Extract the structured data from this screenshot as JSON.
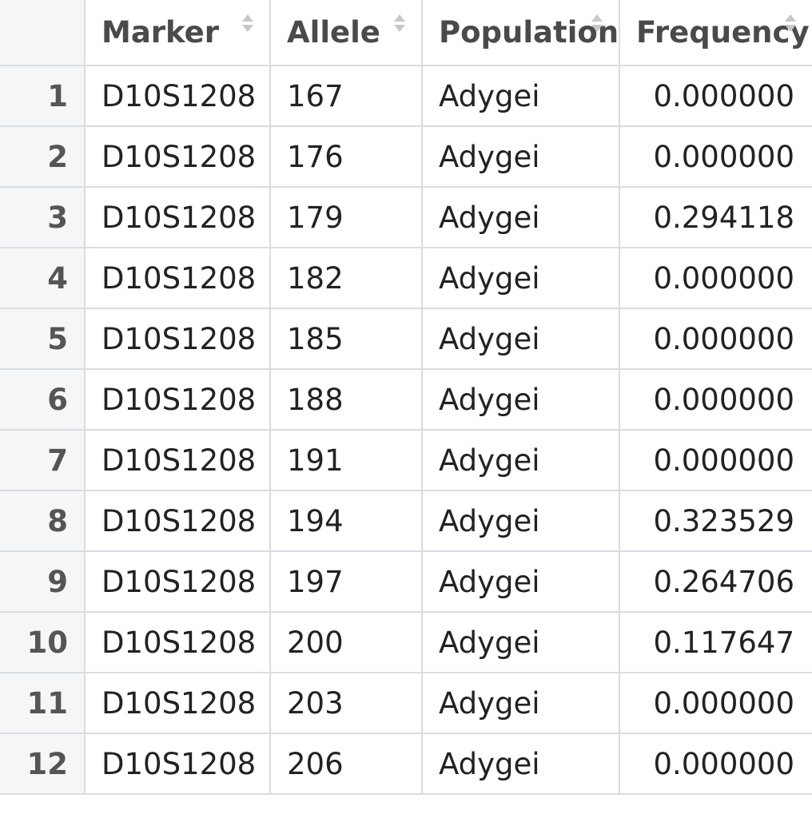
{
  "table": {
    "columns": [
      {
        "label": "",
        "sortable": false
      },
      {
        "label": "Marker",
        "sortable": true
      },
      {
        "label": "Allele",
        "sortable": true
      },
      {
        "label": "Population",
        "sortable": true
      },
      {
        "label": "Frequency",
        "sortable": true
      }
    ],
    "rows": [
      {
        "index": "1",
        "marker": "D10S1208",
        "allele": "167",
        "population": "Adygei",
        "frequency": "0.000000"
      },
      {
        "index": "2",
        "marker": "D10S1208",
        "allele": "176",
        "population": "Adygei",
        "frequency": "0.000000"
      },
      {
        "index": "3",
        "marker": "D10S1208",
        "allele": "179",
        "population": "Adygei",
        "frequency": "0.294118"
      },
      {
        "index": "4",
        "marker": "D10S1208",
        "allele": "182",
        "population": "Adygei",
        "frequency": "0.000000"
      },
      {
        "index": "5",
        "marker": "D10S1208",
        "allele": "185",
        "population": "Adygei",
        "frequency": "0.000000"
      },
      {
        "index": "6",
        "marker": "D10S1208",
        "allele": "188",
        "population": "Adygei",
        "frequency": "0.000000"
      },
      {
        "index": "7",
        "marker": "D10S1208",
        "allele": "191",
        "population": "Adygei",
        "frequency": "0.000000"
      },
      {
        "index": "8",
        "marker": "D10S1208",
        "allele": "194",
        "population": "Adygei",
        "frequency": "0.323529"
      },
      {
        "index": "9",
        "marker": "D10S1208",
        "allele": "197",
        "population": "Adygei",
        "frequency": "0.264706"
      },
      {
        "index": "10",
        "marker": "D10S1208",
        "allele": "200",
        "population": "Adygei",
        "frequency": "0.117647"
      },
      {
        "index": "11",
        "marker": "D10S1208",
        "allele": "203",
        "population": "Adygei",
        "frequency": "0.000000"
      },
      {
        "index": "12",
        "marker": "D10S1208",
        "allele": "206",
        "population": "Adygei",
        "frequency": "0.000000"
      }
    ]
  },
  "icons": {
    "sort": "sort-updown-icon"
  },
  "colors": {
    "border": "#d9dde1",
    "index_background": "#f5f6f7",
    "header_text": "#4a4a4a",
    "sort_icon": "#c8c8c8"
  }
}
